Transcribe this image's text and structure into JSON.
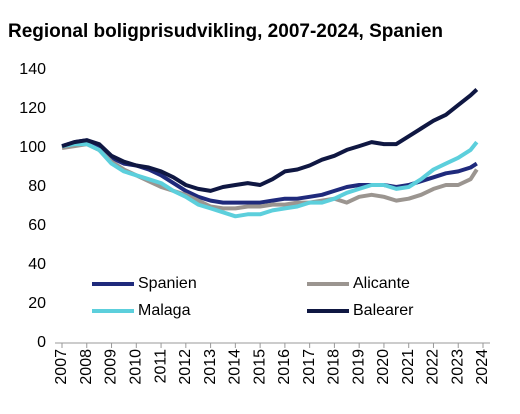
{
  "chart_data": {
    "type": "line",
    "title": "Regional boligprisudvikling, 2007-2024, Spanien",
    "x": [
      2007,
      2007.5,
      2008,
      2008.5,
      2009,
      2009.5,
      2010,
      2010.5,
      2011,
      2011.5,
      2012,
      2012.5,
      2013,
      2013.5,
      2014,
      2014.5,
      2015,
      2015.5,
      2016,
      2016.5,
      2017,
      2017.5,
      2018,
      2018.5,
      2019,
      2019.5,
      2020,
      2020.5,
      2021,
      2021.5,
      2022,
      2022.5,
      2023,
      2023.5,
      2023.75
    ],
    "series": [
      {
        "name": "Spanien",
        "color": "#1f2a7c",
        "values": [
          101,
          103,
          104,
          101,
          95,
          92,
          91,
          89,
          86,
          82,
          78,
          75,
          73,
          72,
          72,
          72,
          72,
          73,
          74,
          74,
          75,
          76,
          78,
          80,
          81,
          81,
          81,
          80,
          81,
          83,
          85,
          87,
          88,
          90,
          92
        ]
      },
      {
        "name": "Alicante",
        "color": "#9b9590",
        "values": [
          100,
          101,
          102,
          99,
          93,
          89,
          86,
          83,
          80,
          78,
          76,
          73,
          70,
          69,
          69,
          70,
          70,
          71,
          71,
          72,
          72,
          73,
          74,
          72,
          75,
          76,
          75,
          73,
          74,
          76,
          79,
          81,
          81,
          84,
          89
        ]
      },
      {
        "name": "Malaga",
        "color": "#5ccfdc",
        "values": [
          101,
          102,
          102,
          99,
          92,
          88,
          86,
          84,
          82,
          78,
          75,
          71,
          69,
          67,
          65,
          66,
          66,
          68,
          69,
          70,
          72,
          72,
          74,
          77,
          79,
          81,
          81,
          79,
          80,
          84,
          89,
          92,
          95,
          99,
          103
        ]
      },
      {
        "name": "Balearer",
        "color": "#0f1742",
        "values": [
          101,
          103,
          104,
          102,
          96,
          93,
          91,
          90,
          88,
          85,
          81,
          79,
          78,
          80,
          81,
          82,
          81,
          84,
          88,
          89,
          91,
          94,
          96,
          99,
          101,
          103,
          102,
          102,
          106,
          110,
          114,
          117,
          122,
          127,
          130
        ]
      }
    ],
    "xlim": [
      2007,
      2024
    ],
    "xticks": [
      2007,
      2008,
      2009,
      2010,
      2011,
      2012,
      2013,
      2014,
      2015,
      2016,
      2017,
      2018,
      2019,
      2020,
      2021,
      2022,
      2023,
      2024
    ],
    "ylim": [
      0,
      140
    ],
    "yticks": [
      0,
      20,
      40,
      60,
      80,
      100,
      120,
      140
    ],
    "grid": false
  }
}
